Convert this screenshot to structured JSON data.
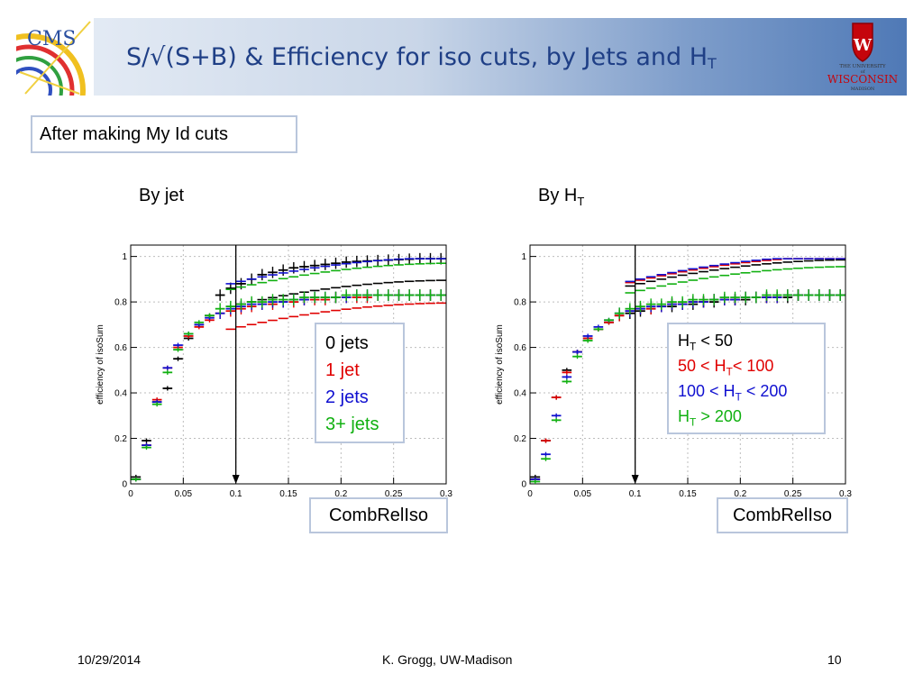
{
  "slide": {
    "title_main": "S/√(S+B) & Efficiency for iso cuts, by Jets and H",
    "title_sub": "T",
    "logo_left_text": "CMS",
    "logo_right_lines": [
      "THE UNIVERSITY",
      "of",
      "WISCONSIN",
      "MADISON"
    ],
    "note": "After making My Id cuts",
    "footer_date": "10/29/2014",
    "footer_author": "K. Grogg, UW-Madison",
    "footer_page": "10"
  },
  "colors": {
    "title": "#1f3f86",
    "black": "#000000",
    "red": "#e00000",
    "blue": "#1010d0",
    "green": "#10b010",
    "box_border": "#b9c6dc"
  },
  "chart_data": [
    {
      "type": "scatter",
      "title": "By jet",
      "xlabel": "CombRelIso",
      "ylabel": "efficiency of isoSum",
      "xlim": [
        0,
        0.3
      ],
      "ylim": [
        0,
        1.05
      ],
      "xticks": [
        "0",
        "0.05",
        "0.1",
        "0.15",
        "0.2",
        "0.25",
        "0.3"
      ],
      "yticks": [
        "0",
        "0.2",
        "0.4",
        "0.6",
        "0.8",
        "1"
      ],
      "cut_line_x": 0.1,
      "legend": [
        {
          "text": "0 jets",
          "color": "#000000"
        },
        {
          "text": "1 jet",
          "color": "#e00000"
        },
        {
          "text": "2 jets",
          "color": "#1010d0"
        },
        {
          "text": "3+ jets",
          "color": "#10b010"
        }
      ],
      "series": [
        {
          "name": "0 jets",
          "color": "#000000",
          "sig": 0.88,
          "x": [
            0.005,
            0.015,
            0.025,
            0.035,
            0.045,
            0.055,
            0.065,
            0.075,
            0.085,
            0.095,
            0.105,
            0.115,
            0.125,
            0.135,
            0.145,
            0.155,
            0.165,
            0.175,
            0.185,
            0.195,
            0.205,
            0.215,
            0.225,
            0.235,
            0.245,
            0.255,
            0.265,
            0.275,
            0.285,
            0.295
          ],
          "y": [
            0.03,
            0.19,
            0.36,
            0.42,
            0.55,
            0.64,
            0.7,
            0.74,
            0.83,
            0.86,
            0.88,
            0.9,
            0.92,
            0.93,
            0.94,
            0.95,
            0.955,
            0.96,
            0.965,
            0.97,
            0.975,
            0.978,
            0.98,
            0.982,
            0.984,
            0.986,
            0.988,
            0.99,
            0.99,
            0.99
          ]
        },
        {
          "name": "1 jet",
          "color": "#e00000",
          "sig": 0.78,
          "x": [
            0.005,
            0.015,
            0.025,
            0.035,
            0.045,
            0.055,
            0.065,
            0.075,
            0.085,
            0.095,
            0.105,
            0.115,
            0.125,
            0.135,
            0.145,
            0.155,
            0.165,
            0.175,
            0.185,
            0.195,
            0.205,
            0.215,
            0.225,
            0.235,
            0.245,
            0.255,
            0.265,
            0.275,
            0.285,
            0.295
          ],
          "y": [
            0.02,
            0.17,
            0.37,
            0.51,
            0.6,
            0.65,
            0.69,
            0.72,
            0.75,
            0.76,
            0.77,
            0.78,
            0.79,
            0.79,
            0.8,
            0.8,
            0.81,
            0.81,
            0.81,
            0.82,
            0.82,
            0.82,
            0.82,
            0.83,
            0.83,
            0.83,
            0.83,
            0.83,
            0.83,
            0.83
          ]
        },
        {
          "name": "2 jets",
          "color": "#1010d0",
          "sig": 0.98,
          "x": [
            0.005,
            0.015,
            0.025,
            0.035,
            0.045,
            0.055,
            0.065,
            0.075,
            0.085,
            0.095,
            0.105,
            0.115,
            0.125,
            0.135,
            0.145,
            0.155,
            0.165,
            0.175,
            0.185,
            0.195,
            0.205,
            0.215,
            0.225,
            0.235,
            0.245,
            0.255,
            0.265,
            0.275,
            0.285,
            0.295
          ],
          "y": [
            0.02,
            0.17,
            0.36,
            0.51,
            0.61,
            0.66,
            0.7,
            0.73,
            0.75,
            0.77,
            0.78,
            0.79,
            0.79,
            0.8,
            0.8,
            0.81,
            0.81,
            0.82,
            0.82,
            0.82,
            0.82,
            0.83,
            0.83,
            0.83,
            0.83,
            0.83,
            0.83,
            0.83,
            0.83,
            0.83
          ]
        },
        {
          "name": "3+ jets",
          "color": "#10b010",
          "sig": 0.955,
          "x": [
            0.005,
            0.015,
            0.025,
            0.035,
            0.045,
            0.055,
            0.065,
            0.075,
            0.085,
            0.095,
            0.105,
            0.115,
            0.125,
            0.135,
            0.145,
            0.155,
            0.165,
            0.175,
            0.185,
            0.195,
            0.205,
            0.215,
            0.225,
            0.235,
            0.245,
            0.255,
            0.265,
            0.275,
            0.285,
            0.295
          ],
          "y": [
            0.02,
            0.16,
            0.35,
            0.49,
            0.59,
            0.66,
            0.71,
            0.74,
            0.77,
            0.78,
            0.79,
            0.8,
            0.8,
            0.81,
            0.81,
            0.81,
            0.82,
            0.82,
            0.82,
            0.82,
            0.83,
            0.83,
            0.83,
            0.83,
            0.83,
            0.83,
            0.83,
            0.83,
            0.83,
            0.83
          ]
        }
      ]
    },
    {
      "type": "scatter",
      "title": "By H",
      "title_sub": "T",
      "xlabel": "CombRelIso",
      "ylabel": "efficiency of isoSum",
      "xlim": [
        0,
        0.3
      ],
      "ylim": [
        0,
        1.05
      ],
      "xticks": [
        "0",
        "0.05",
        "0.1",
        "0.15",
        "0.2",
        "0.25",
        "0.3"
      ],
      "yticks": [
        "0",
        "0.2",
        "0.4",
        "0.6",
        "0.8",
        "1"
      ],
      "cut_line_x": 0.1,
      "legend": [
        {
          "parts": [
            "H",
            "T",
            " < 50"
          ],
          "color": "#000000"
        },
        {
          "parts": [
            "50 < H",
            "T",
            "< 100"
          ],
          "color": "#e00000"
        },
        {
          "parts": [
            "100 < H",
            "T",
            " < 200"
          ],
          "color": "#1010d0"
        },
        {
          "parts": [
            "H",
            "T",
            " > 200"
          ],
          "color": "#10b010"
        }
      ],
      "series": [
        {
          "name": "H_T < 50",
          "color": "#000000",
          "sig": 0.97,
          "x": [
            0.005,
            0.015,
            0.025,
            0.035,
            0.045,
            0.055,
            0.065,
            0.075,
            0.085,
            0.095,
            0.105,
            0.115,
            0.125,
            0.135,
            0.145,
            0.155,
            0.165,
            0.175,
            0.185,
            0.195,
            0.205,
            0.215,
            0.225,
            0.235,
            0.245,
            0.255,
            0.265,
            0.275,
            0.285,
            0.295
          ],
          "y": [
            0.03,
            0.19,
            0.38,
            0.5,
            0.58,
            0.64,
            0.68,
            0.71,
            0.74,
            0.75,
            0.76,
            0.77,
            0.78,
            0.78,
            0.79,
            0.79,
            0.8,
            0.8,
            0.81,
            0.81,
            0.81,
            0.82,
            0.82,
            0.82,
            0.82,
            0.83,
            0.83,
            0.83,
            0.83,
            0.83
          ]
        },
        {
          "name": "50 < H_T < 100",
          "color": "#e00000",
          "sig": 0.985,
          "x": [
            0.005,
            0.015,
            0.025,
            0.035,
            0.045,
            0.055,
            0.065,
            0.075,
            0.085,
            0.095,
            0.105,
            0.115,
            0.125,
            0.135,
            0.145,
            0.155,
            0.165,
            0.175,
            0.185,
            0.195,
            0.205,
            0.215,
            0.225,
            0.235,
            0.245,
            0.255,
            0.265,
            0.275,
            0.285,
            0.295
          ],
          "y": [
            0.02,
            0.19,
            0.38,
            0.49,
            0.58,
            0.64,
            0.68,
            0.71,
            0.74,
            0.76,
            0.77,
            0.77,
            0.78,
            0.79,
            0.79,
            0.8,
            0.8,
            0.81,
            0.81,
            0.81,
            0.82,
            0.82,
            0.82,
            0.82,
            0.83,
            0.83,
            0.83,
            0.83,
            0.83,
            0.83
          ]
        },
        {
          "name": "100 < H_T < 200",
          "color": "#1010d0",
          "sig": 0.99,
          "x": [
            0.005,
            0.015,
            0.025,
            0.035,
            0.045,
            0.055,
            0.065,
            0.075,
            0.085,
            0.095,
            0.105,
            0.115,
            0.125,
            0.135,
            0.145,
            0.155,
            0.165,
            0.175,
            0.185,
            0.195,
            0.205,
            0.215,
            0.225,
            0.235,
            0.245,
            0.255,
            0.265,
            0.275,
            0.285,
            0.295
          ],
          "y": [
            0.02,
            0.13,
            0.3,
            0.47,
            0.58,
            0.65,
            0.69,
            0.72,
            0.75,
            0.76,
            0.77,
            0.78,
            0.78,
            0.79,
            0.79,
            0.8,
            0.8,
            0.81,
            0.81,
            0.81,
            0.82,
            0.82,
            0.82,
            0.82,
            0.83,
            0.83,
            0.83,
            0.83,
            0.83,
            0.83
          ]
        },
        {
          "name": "H_T > 200",
          "color": "#10b010",
          "sig": 0.94,
          "x": [
            0.005,
            0.015,
            0.025,
            0.035,
            0.045,
            0.055,
            0.065,
            0.075,
            0.085,
            0.095,
            0.105,
            0.115,
            0.125,
            0.135,
            0.145,
            0.155,
            0.165,
            0.175,
            0.185,
            0.195,
            0.205,
            0.215,
            0.225,
            0.235,
            0.245,
            0.255,
            0.265,
            0.275,
            0.285,
            0.295
          ],
          "y": [
            0.01,
            0.11,
            0.28,
            0.45,
            0.56,
            0.63,
            0.68,
            0.72,
            0.75,
            0.77,
            0.78,
            0.79,
            0.79,
            0.8,
            0.8,
            0.81,
            0.81,
            0.81,
            0.82,
            0.82,
            0.82,
            0.82,
            0.83,
            0.83,
            0.83,
            0.83,
            0.83,
            0.83,
            0.83,
            0.83
          ]
        }
      ]
    }
  ]
}
